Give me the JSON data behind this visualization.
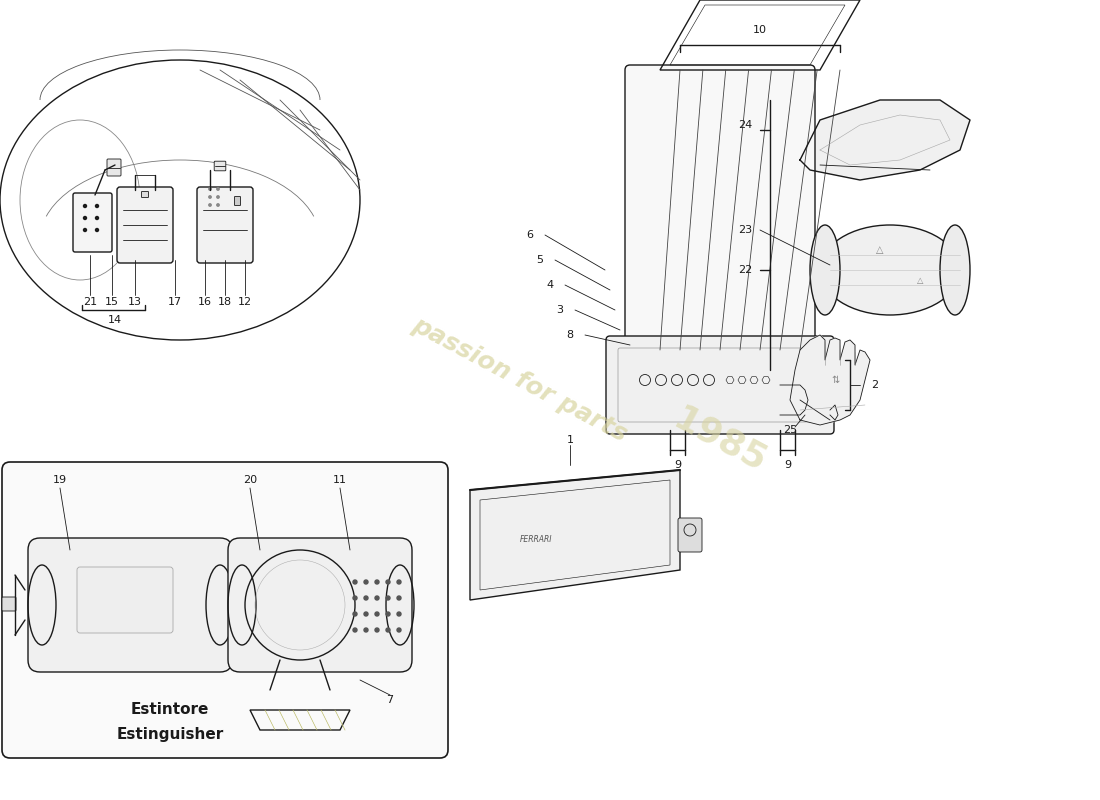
{
  "bg_color": "#ffffff",
  "line_color": "#1a1a1a",
  "watermark_color": "#d8d4a0",
  "estintore_it": "Estintore",
  "estintore_en": "Estinguisher",
  "lw_main": 1.0,
  "lw_thin": 0.6,
  "label_fontsize": 8.0
}
